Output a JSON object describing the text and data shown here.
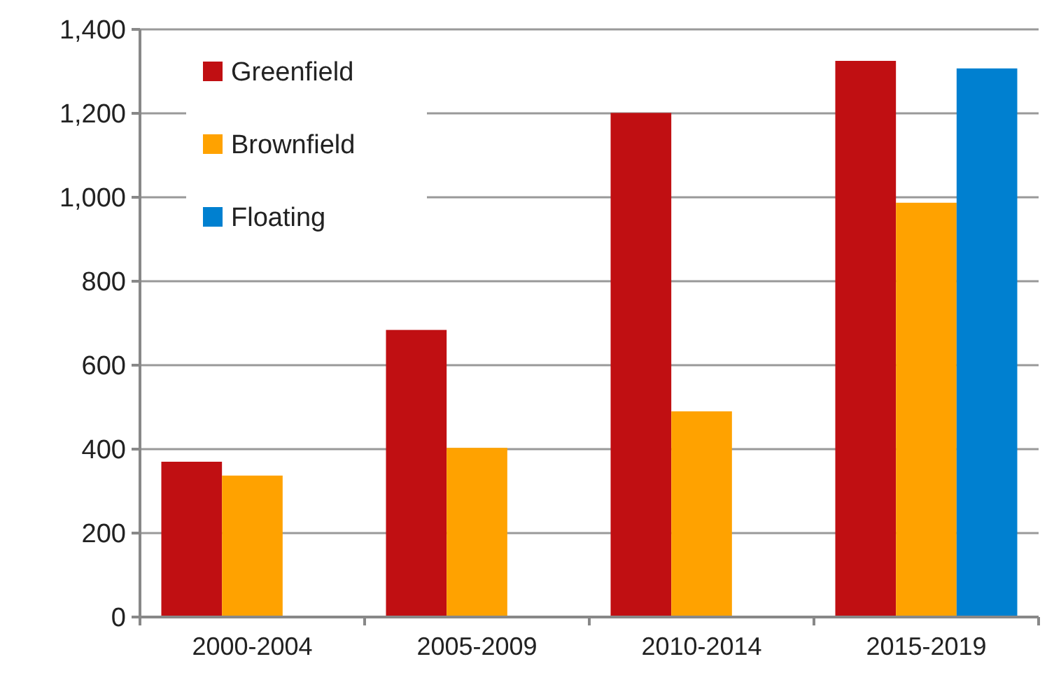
{
  "chart_data": {
    "type": "bar",
    "categories": [
      "2000-2004",
      "2005-2009",
      "2010-2014",
      "2015-2019"
    ],
    "series": [
      {
        "name": "Greenfield",
        "color": "#c00f12",
        "values": [
          370,
          684,
          1201,
          1325
        ]
      },
      {
        "name": "Brownfield",
        "color": "#ffa200",
        "values": [
          337,
          403,
          490,
          987
        ]
      },
      {
        "name": "Floating",
        "color": "#0080d0",
        "values": [
          null,
          null,
          null,
          1307
        ]
      }
    ],
    "ylim": [
      0,
      1400
    ],
    "yticks": [
      {
        "value": 0,
        "label": "0"
      },
      {
        "value": 200,
        "label": "200"
      },
      {
        "value": 400,
        "label": "400"
      },
      {
        "value": 600,
        "label": "600"
      },
      {
        "value": 800,
        "label": "800"
      },
      {
        "value": 1000,
        "label": "1,000"
      },
      {
        "value": 1200,
        "label": "1,200"
      },
      {
        "value": 1400,
        "label": "1,400"
      }
    ],
    "grid": "y",
    "legend": "top left"
  }
}
